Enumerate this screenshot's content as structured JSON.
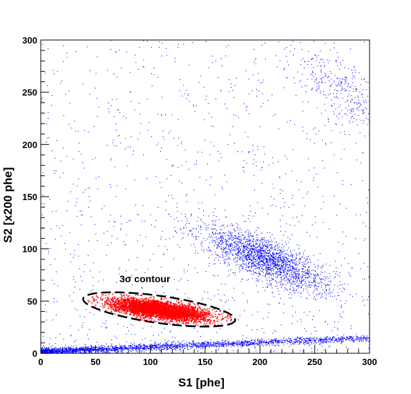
{
  "chart_data": {
    "type": "scatter",
    "title": "",
    "xlabel": "S1 [phe]",
    "ylabel": "S2 [x200 phe]",
    "xlim": [
      0,
      300
    ],
    "ylim": [
      0,
      300
    ],
    "x_ticks": [
      0,
      50,
      100,
      150,
      200,
      250,
      300
    ],
    "y_ticks": [
      0,
      50,
      100,
      150,
      200,
      250,
      300
    ],
    "grid": false,
    "legend": "none",
    "series": [
      {
        "color": "#0000ff",
        "clusters": [
          {
            "shape": "band",
            "x_range": [
              0,
              300
            ],
            "y_start": 2,
            "y_end": 15,
            "points": 2600
          },
          {
            "shape": "ellipse",
            "center": [
              205,
              90
            ],
            "sigma_major": 32,
            "sigma_minor": 9,
            "angle_deg": -25,
            "points": 2200
          },
          {
            "shape": "ellipse",
            "center": [
              280,
              250
            ],
            "sigma_major": 30,
            "sigma_minor": 12,
            "angle_deg": -40,
            "points": 350
          },
          {
            "shape": "uniform",
            "x_range": [
              0,
              300
            ],
            "y_range": [
              0,
              300
            ],
            "points": 1200
          }
        ]
      },
      {
        "color": "#ff0000",
        "clusters": [
          {
            "shape": "ellipse",
            "center": [
              108,
              42
            ],
            "sigma_major": 22,
            "sigma_minor": 4,
            "angle_deg": -8,
            "points": 4000,
            "clip_sigma": 3
          }
        ]
      }
    ],
    "contour": {
      "center": [
        108,
        42
      ],
      "semi_major": 70,
      "semi_minor": 13,
      "angle_deg": -8,
      "style": "dashed",
      "color": "#000000"
    },
    "annotations": [
      {
        "text": "3σ contour",
        "x": 95,
        "y": 68
      }
    ]
  }
}
